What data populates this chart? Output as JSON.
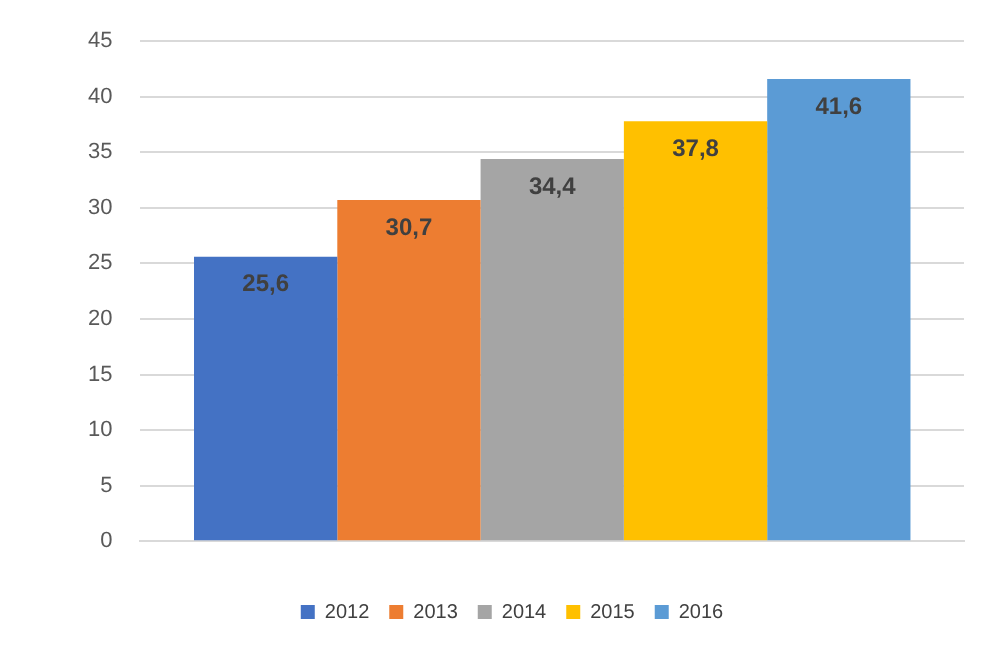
{
  "chart_data": {
    "type": "bar",
    "categories": [
      null
    ],
    "series": [
      {
        "name": "2012",
        "color": "#4472c4",
        "values": [
          25.6
        ],
        "value_labels": [
          "25,6"
        ]
      },
      {
        "name": "2013",
        "color": "#ed7d31",
        "values": [
          30.7
        ],
        "value_labels": [
          "30,7"
        ]
      },
      {
        "name": "2014",
        "color": "#a5a5a5",
        "values": [
          34.4
        ],
        "value_labels": [
          "34,4"
        ]
      },
      {
        "name": "2015",
        "color": "#ffc000",
        "values": [
          37.8
        ],
        "value_labels": [
          "37,8"
        ]
      },
      {
        "name": "2016",
        "color": "#5b9bd5",
        "values": [
          41.6
        ],
        "value_labels": [
          "41,6"
        ]
      }
    ],
    "ylim": [
      0,
      45
    ],
    "yticks": [
      0,
      5,
      10,
      15,
      20,
      25,
      30,
      35,
      40,
      45
    ],
    "grid": "y",
    "legend": "bottom"
  }
}
